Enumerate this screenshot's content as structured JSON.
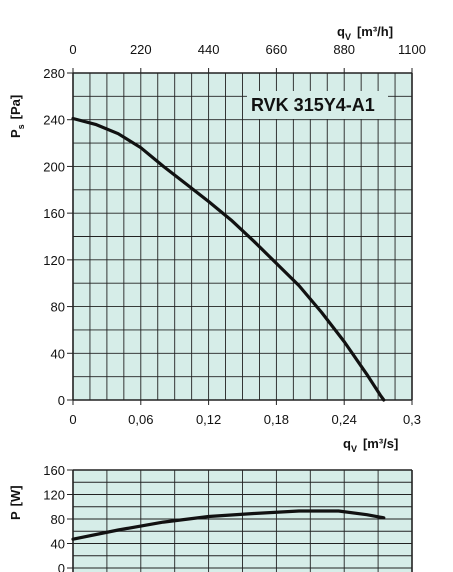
{
  "chart_data": [
    {
      "type": "line",
      "title": "RVK 315Y4-A1",
      "colors": {
        "plot_background": "#d6ede8",
        "grid": "#222222",
        "curve": "#111111"
      },
      "grid": true,
      "x": {
        "label_main": "q",
        "label_sub": "V",
        "label_unit": "[m³/s]",
        "range": [
          0,
          0.3
        ],
        "ticks": [
          "0",
          "0,06",
          "0,12",
          "0,18",
          "0,24",
          "0,3"
        ]
      },
      "x_top": {
        "label_main": "q",
        "label_sub": "V",
        "label_unit": "[m³/h]",
        "range": [
          0,
          1100
        ],
        "ticks": [
          "0",
          "220",
          "440",
          "660",
          "880",
          "1100"
        ]
      },
      "y": {
        "label_main": "P",
        "label_sub": "s",
        "label_unit": "[Pa]",
        "range": [
          0,
          280
        ],
        "ticks": [
          "0",
          "40",
          "80",
          "120",
          "160",
          "200",
          "240",
          "280"
        ]
      },
      "series": [
        {
          "points": [
            [
              0,
              241
            ],
            [
              0.02,
              236
            ],
            [
              0.04,
              228
            ],
            [
              0.06,
              216
            ],
            [
              0.08,
              200
            ],
            [
              0.1,
              185
            ],
            [
              0.12,
              170
            ],
            [
              0.14,
              154
            ],
            [
              0.16,
              136
            ],
            [
              0.18,
              117
            ],
            [
              0.2,
              98
            ],
            [
              0.22,
              75
            ],
            [
              0.24,
              50
            ],
            [
              0.26,
              22
            ],
            [
              0.272,
              4
            ],
            [
              0.275,
              0
            ]
          ]
        }
      ]
    },
    {
      "type": "line",
      "y": {
        "label_main": "P",
        "label_unit": "[W]",
        "range": [
          0,
          160
        ],
        "ticks": [
          "0",
          "40",
          "80",
          "120",
          "160"
        ]
      },
      "x": {
        "range": [
          0,
          0.3
        ]
      },
      "series": [
        {
          "points": [
            [
              0,
              47
            ],
            [
              0.04,
              62
            ],
            [
              0.08,
              75
            ],
            [
              0.12,
              84
            ],
            [
              0.16,
              89
            ],
            [
              0.2,
              93
            ],
            [
              0.235,
              93
            ],
            [
              0.26,
              87
            ],
            [
              0.275,
              82
            ]
          ]
        }
      ]
    }
  ]
}
